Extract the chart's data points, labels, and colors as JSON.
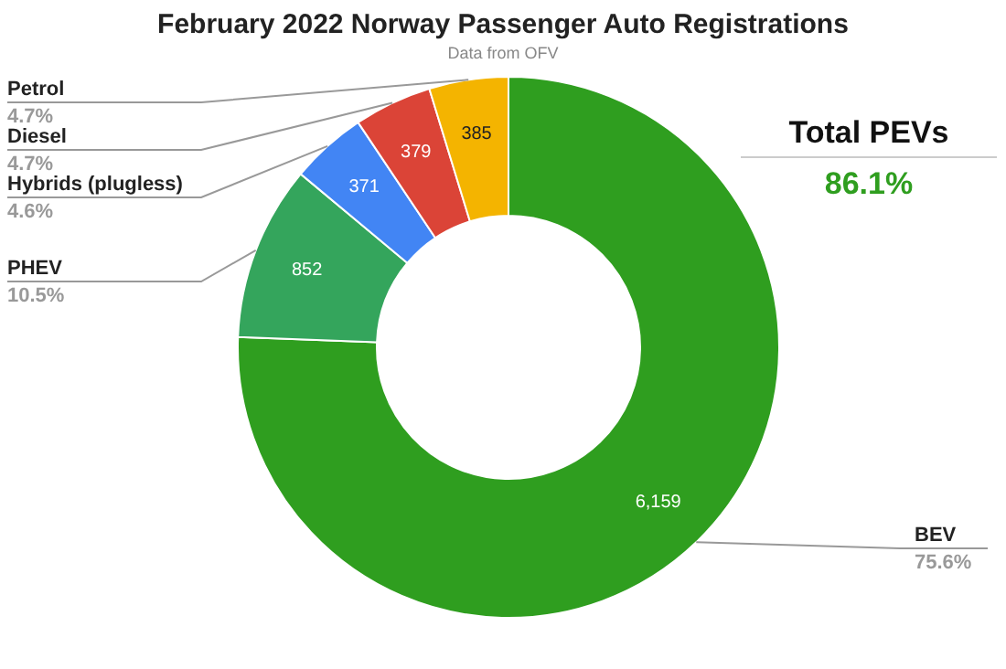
{
  "chart_data": {
    "type": "donut",
    "title": "February 2022 Norway Passenger Auto Registrations",
    "subtitle": "Data from OFV",
    "categories": [
      "BEV",
      "PHEV",
      "Hybrids (plugless)",
      "Diesel",
      "Petrol"
    ],
    "values": [
      6159,
      852,
      371,
      379,
      385
    ],
    "value_labels": [
      "6,159",
      "852",
      "371",
      "379",
      "385"
    ],
    "colors": [
      "#2f9e1f",
      "#34a55c",
      "#4285f4",
      "#db4437",
      "#f4b400"
    ],
    "annotations": [
      "Total PEVs",
      "86.1%",
      "75.6%",
      "10.5%",
      "4.6%",
      "4.7%",
      "4.7%"
    ]
  }
}
